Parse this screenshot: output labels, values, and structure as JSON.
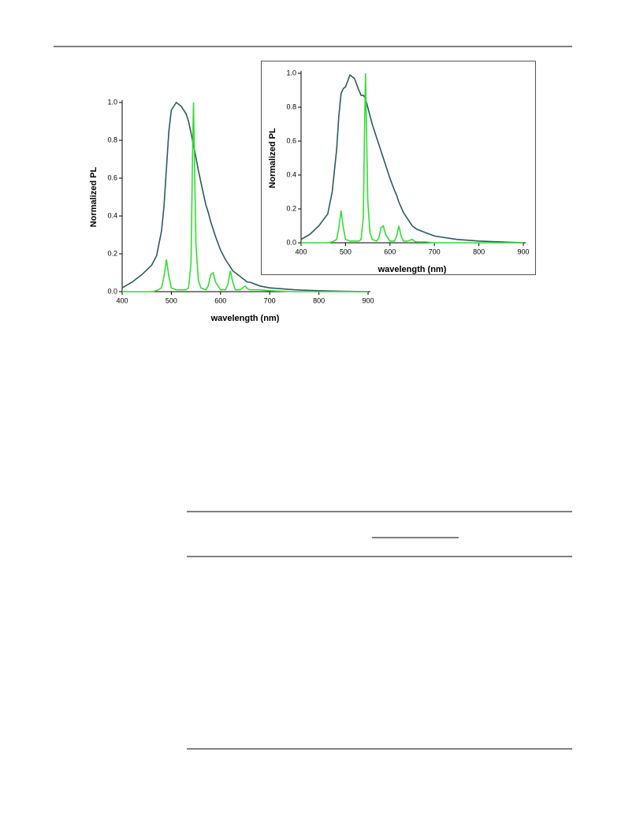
{
  "chart_data": [
    {
      "type": "line",
      "x_label": "wavelength (nm)",
      "y_label": "Normalized PL",
      "x": [
        400,
        420,
        440,
        460,
        470,
        480,
        485,
        490,
        495,
        500,
        510,
        520,
        530,
        535,
        540,
        543,
        545,
        547,
        550,
        555,
        560,
        570,
        575,
        580,
        585,
        590,
        600,
        610,
        615,
        620,
        625,
        630,
        640,
        645,
        650,
        655,
        660,
        680,
        700,
        750,
        800,
        850,
        900
      ],
      "series": [
        {
          "color": "#2b5c5c",
          "values": [
            0.02,
            0.05,
            0.09,
            0.14,
            0.19,
            0.32,
            0.45,
            0.65,
            0.85,
            0.96,
            1.0,
            0.98,
            0.94,
            0.9,
            0.84,
            0.8,
            0.77,
            0.75,
            0.71,
            0.64,
            0.58,
            0.46,
            0.42,
            0.37,
            0.33,
            0.29,
            0.22,
            0.17,
            0.15,
            0.13,
            0.11,
            0.1,
            0.08,
            0.07,
            0.06,
            0.05,
            0.05,
            0.03,
            0.02,
            0.01,
            0.005,
            0.002,
            0
          ]
        },
        {
          "color": "#33dd33",
          "values": [
            0,
            0,
            0,
            0,
            0.005,
            0.02,
            0.08,
            0.17,
            0.08,
            0.02,
            0.01,
            0.01,
            0.01,
            0.02,
            0.15,
            0.7,
            1.0,
            0.7,
            0.25,
            0.06,
            0.02,
            0.01,
            0.03,
            0.09,
            0.1,
            0.05,
            0.01,
            0.01,
            0.04,
            0.11,
            0.05,
            0.01,
            0.01,
            0.02,
            0.03,
            0.015,
            0.01,
            0.01,
            0.005,
            0,
            0,
            0,
            0
          ]
        }
      ],
      "xlim": [
        400,
        900
      ],
      "xticks": [
        400,
        500,
        600,
        700,
        800,
        900
      ],
      "ylim": [
        0,
        1.0
      ],
      "yticks": [
        {
          "value": 0,
          "label": "0.0"
        },
        0.2,
        0.4,
        0.6,
        0.8,
        {
          "value": 1,
          "label": "1.0"
        }
      ]
    },
    {
      "type": "line",
      "x_label": "wavelength (nm)",
      "y_label": "Normalized PL",
      "x": [
        400,
        420,
        440,
        460,
        470,
        480,
        485,
        490,
        495,
        500,
        510,
        520,
        530,
        535,
        540,
        543,
        545,
        547,
        550,
        555,
        560,
        570,
        575,
        580,
        585,
        590,
        600,
        610,
        615,
        620,
        625,
        630,
        640,
        645,
        650,
        655,
        660,
        680,
        700,
        750,
        800,
        850,
        900
      ],
      "series": [
        {
          "color": "#2b5c5c",
          "values": [
            0.02,
            0.05,
            0.1,
            0.17,
            0.3,
            0.55,
            0.75,
            0.88,
            0.91,
            0.92,
            0.99,
            0.97,
            0.9,
            0.87,
            0.87,
            0.86,
            0.85,
            0.83,
            0.8,
            0.75,
            0.7,
            0.62,
            0.58,
            0.54,
            0.5,
            0.46,
            0.38,
            0.31,
            0.28,
            0.24,
            0.21,
            0.18,
            0.14,
            0.12,
            0.1,
            0.09,
            0.08,
            0.06,
            0.04,
            0.02,
            0.01,
            0.005,
            0
          ]
        },
        {
          "color": "#33dd33",
          "values": [
            0,
            0,
            0,
            0,
            0.005,
            0.02,
            0.09,
            0.19,
            0.09,
            0.02,
            0.01,
            0.01,
            0.01,
            0.02,
            0.15,
            0.7,
            1.0,
            0.7,
            0.25,
            0.06,
            0.02,
            0.01,
            0.03,
            0.09,
            0.1,
            0.05,
            0.01,
            0.01,
            0.04,
            0.1,
            0.04,
            0.01,
            0.01,
            0.015,
            0.02,
            0.01,
            0.005,
            0.005,
            0,
            0,
            0,
            0,
            0
          ]
        }
      ],
      "xlim": [
        400,
        900
      ],
      "xticks": [
        400,
        500,
        600,
        700,
        800,
        900
      ],
      "ylim": [
        0,
        1.0
      ],
      "yticks": [
        {
          "value": 0,
          "label": "0.0"
        },
        0.2,
        0.4,
        0.6,
        0.8,
        {
          "value": 1,
          "label": "1.0"
        }
      ]
    }
  ]
}
